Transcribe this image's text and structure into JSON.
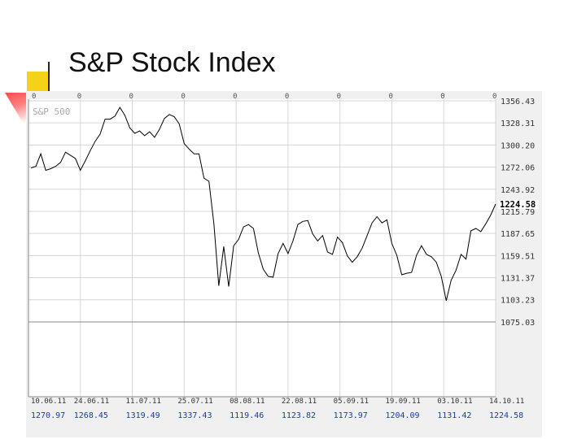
{
  "slide": {
    "title": "S&P Stock Index"
  },
  "colors": {
    "accent_square": "#f5d21a",
    "accent_wedge": "#ff5a5a",
    "line": "#000000",
    "grid": "#c8c8c8",
    "panel": "#f0f0f0"
  },
  "chart_data": {
    "type": "line",
    "series_label": "S&P 500",
    "last_value_label": "1224.58",
    "ylim": [
      1075.03,
      1356.43
    ],
    "grid": true,
    "yticks": [
      "1356.43",
      "1328.31",
      "1300.20",
      "1272.06",
      "1243.92",
      "1215.79",
      "1187.65",
      "1159.51",
      "1131.37",
      "1103.23",
      "1075.03"
    ],
    "top_ticks": [
      "0",
      "0",
      "0",
      "0",
      "0",
      "0",
      "0",
      "0",
      "0",
      "0"
    ],
    "date_labels": [
      "10.06.11",
      "24.06.11",
      "11.07.11",
      "25.07.11",
      "08.08.11",
      "22.08.11",
      "05.09.11",
      "19.09.11",
      "03.10.11",
      "14.10.11"
    ],
    "date_values": [
      "1270.97",
      "1268.45",
      "1319.49",
      "1337.43",
      "1119.46",
      "1123.82",
      "1173.97",
      "1204.09",
      "1131.42",
      "1224.58"
    ],
    "values": [
      1271,
      1273,
      1289,
      1268,
      1270,
      1273,
      1278,
      1291,
      1287,
      1283,
      1268,
      1280,
      1293,
      1305,
      1314,
      1333,
      1333,
      1337,
      1348,
      1338,
      1322,
      1315,
      1318,
      1312,
      1317,
      1310,
      1320,
      1334,
      1339,
      1336,
      1327,
      1302,
      1295,
      1289,
      1289,
      1258,
      1254,
      1200,
      1121,
      1171,
      1120,
      1172,
      1180,
      1196,
      1199,
      1194,
      1163,
      1142,
      1133,
      1132,
      1162,
      1175,
      1162,
      1178,
      1199,
      1203,
      1204,
      1187,
      1178,
      1185,
      1164,
      1161,
      1183,
      1176,
      1159,
      1151,
      1158,
      1169,
      1185,
      1201,
      1209,
      1201,
      1205,
      1175,
      1160,
      1135,
      1137,
      1138,
      1160,
      1172,
      1161,
      1158,
      1151,
      1133,
      1102,
      1128,
      1141,
      1161,
      1155,
      1191,
      1194,
      1190,
      1200,
      1211,
      1225
    ]
  }
}
